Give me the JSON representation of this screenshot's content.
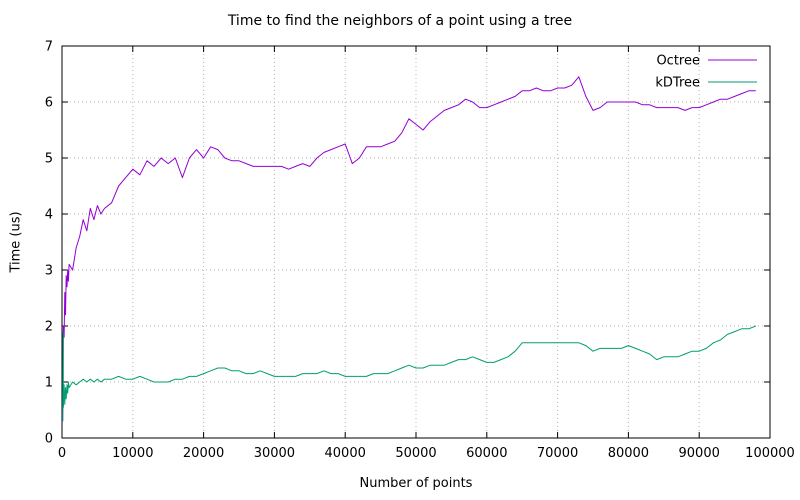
{
  "chart_data": {
    "type": "line",
    "title": "Time to find the neighbors of a point using a tree",
    "xlabel": "Number of points",
    "ylabel": "Time (us)",
    "xlim": [
      0,
      100000
    ],
    "ylim": [
      0,
      7
    ],
    "xticks": [
      0,
      10000,
      20000,
      30000,
      40000,
      50000,
      60000,
      70000,
      80000,
      90000,
      100000
    ],
    "yticks": [
      0,
      1,
      2,
      3,
      4,
      5,
      6,
      7
    ],
    "grid": true,
    "legend_position": "top-right-inside",
    "series": [
      {
        "name": "Octree",
        "color": "#9400d3",
        "x": [
          100,
          200,
          300,
          400,
          500,
          600,
          700,
          800,
          900,
          1000,
          1500,
          2000,
          2500,
          3000,
          3500,
          4000,
          4500,
          5000,
          5500,
          6000,
          7000,
          8000,
          9000,
          10000,
          11000,
          12000,
          13000,
          14000,
          15000,
          16000,
          17000,
          18000,
          19000,
          20000,
          21000,
          22000,
          23000,
          24000,
          25000,
          26000,
          27000,
          28000,
          29000,
          30000,
          31000,
          32000,
          33000,
          34000,
          35000,
          36000,
          37000,
          38000,
          39000,
          40000,
          41000,
          42000,
          43000,
          44000,
          45000,
          46000,
          47000,
          48000,
          49000,
          50000,
          51000,
          52000,
          53000,
          54000,
          55000,
          56000,
          57000,
          58000,
          59000,
          60000,
          61000,
          62000,
          63000,
          64000,
          65000,
          66000,
          67000,
          68000,
          69000,
          70000,
          71000,
          72000,
          73000,
          74000,
          75000,
          76000,
          77000,
          78000,
          79000,
          80000,
          81000,
          82000,
          83000,
          84000,
          85000,
          86000,
          87000,
          88000,
          89000,
          90000,
          91000,
          92000,
          93000,
          94000,
          95000,
          96000,
          97000,
          98000
        ],
        "y": [
          0.3,
          2.0,
          1.8,
          2.6,
          2.2,
          2.9,
          2.7,
          3.0,
          2.8,
          3.1,
          3.0,
          3.4,
          3.6,
          3.9,
          3.7,
          4.1,
          3.9,
          4.15,
          4.0,
          4.1,
          4.2,
          4.5,
          4.65,
          4.8,
          4.7,
          4.95,
          4.85,
          5.0,
          4.9,
          5.0,
          4.65,
          5.0,
          5.15,
          5.0,
          5.2,
          5.15,
          5.0,
          4.95,
          4.95,
          4.9,
          4.85,
          4.85,
          4.85,
          4.85,
          4.85,
          4.8,
          4.85,
          4.9,
          4.85,
          5.0,
          5.1,
          5.15,
          5.2,
          5.25,
          4.9,
          5.0,
          5.2,
          5.2,
          5.2,
          5.25,
          5.3,
          5.45,
          5.7,
          5.6,
          5.5,
          5.65,
          5.75,
          5.85,
          5.9,
          5.95,
          6.05,
          6.0,
          5.9,
          5.9,
          5.95,
          6.0,
          6.05,
          6.1,
          6.2,
          6.2,
          6.25,
          6.2,
          6.2,
          6.25,
          6.25,
          6.3,
          6.45,
          6.1,
          5.85,
          5.9,
          6.0,
          6.0,
          6.0,
          6.0,
          6.0,
          5.95,
          5.95,
          5.9,
          5.9,
          5.9,
          5.9,
          5.85,
          5.9,
          5.9,
          5.95,
          6.0,
          6.05,
          6.05,
          6.1,
          6.15,
          6.2,
          6.2
        ]
      },
      {
        "name": "kDTree",
        "color": "#009e73",
        "x": [
          100,
          150,
          200,
          300,
          400,
          500,
          600,
          700,
          800,
          900,
          1000,
          1500,
          2000,
          2500,
          3000,
          3500,
          4000,
          4500,
          5000,
          5500,
          6000,
          7000,
          8000,
          9000,
          10000,
          11000,
          12000,
          13000,
          14000,
          15000,
          16000,
          17000,
          18000,
          19000,
          20000,
          21000,
          22000,
          23000,
          24000,
          25000,
          26000,
          27000,
          28000,
          29000,
          30000,
          31000,
          32000,
          33000,
          34000,
          35000,
          36000,
          37000,
          38000,
          39000,
          40000,
          41000,
          42000,
          43000,
          44000,
          45000,
          46000,
          47000,
          48000,
          49000,
          50000,
          51000,
          52000,
          53000,
          54000,
          55000,
          56000,
          57000,
          58000,
          59000,
          60000,
          61000,
          62000,
          63000,
          64000,
          65000,
          66000,
          67000,
          68000,
          69000,
          70000,
          71000,
          72000,
          73000,
          74000,
          75000,
          76000,
          77000,
          78000,
          79000,
          80000,
          81000,
          82000,
          83000,
          84000,
          85000,
          86000,
          87000,
          88000,
          89000,
          90000,
          91000,
          92000,
          93000,
          94000,
          95000,
          96000,
          97000,
          98000
        ],
        "y": [
          0.3,
          1.9,
          0.55,
          0.95,
          0.6,
          0.9,
          0.7,
          0.95,
          0.8,
          1.0,
          0.9,
          1.0,
          0.95,
          1.0,
          1.05,
          1.0,
          1.05,
          1.0,
          1.05,
          1.0,
          1.05,
          1.05,
          1.1,
          1.05,
          1.05,
          1.1,
          1.05,
          1.0,
          1.0,
          1.0,
          1.05,
          1.05,
          1.1,
          1.1,
          1.15,
          1.2,
          1.25,
          1.25,
          1.2,
          1.2,
          1.15,
          1.15,
          1.2,
          1.15,
          1.1,
          1.1,
          1.1,
          1.1,
          1.15,
          1.15,
          1.15,
          1.2,
          1.15,
          1.15,
          1.1,
          1.1,
          1.1,
          1.1,
          1.15,
          1.15,
          1.15,
          1.2,
          1.25,
          1.3,
          1.25,
          1.25,
          1.3,
          1.3,
          1.3,
          1.35,
          1.4,
          1.4,
          1.45,
          1.4,
          1.35,
          1.35,
          1.4,
          1.45,
          1.55,
          1.7,
          1.7,
          1.7,
          1.7,
          1.7,
          1.7,
          1.7,
          1.7,
          1.7,
          1.65,
          1.55,
          1.6,
          1.6,
          1.6,
          1.6,
          1.65,
          1.6,
          1.55,
          1.5,
          1.4,
          1.45,
          1.45,
          1.45,
          1.5,
          1.55,
          1.55,
          1.6,
          1.7,
          1.75,
          1.85,
          1.9,
          1.95,
          1.95,
          2.0
        ]
      }
    ]
  }
}
